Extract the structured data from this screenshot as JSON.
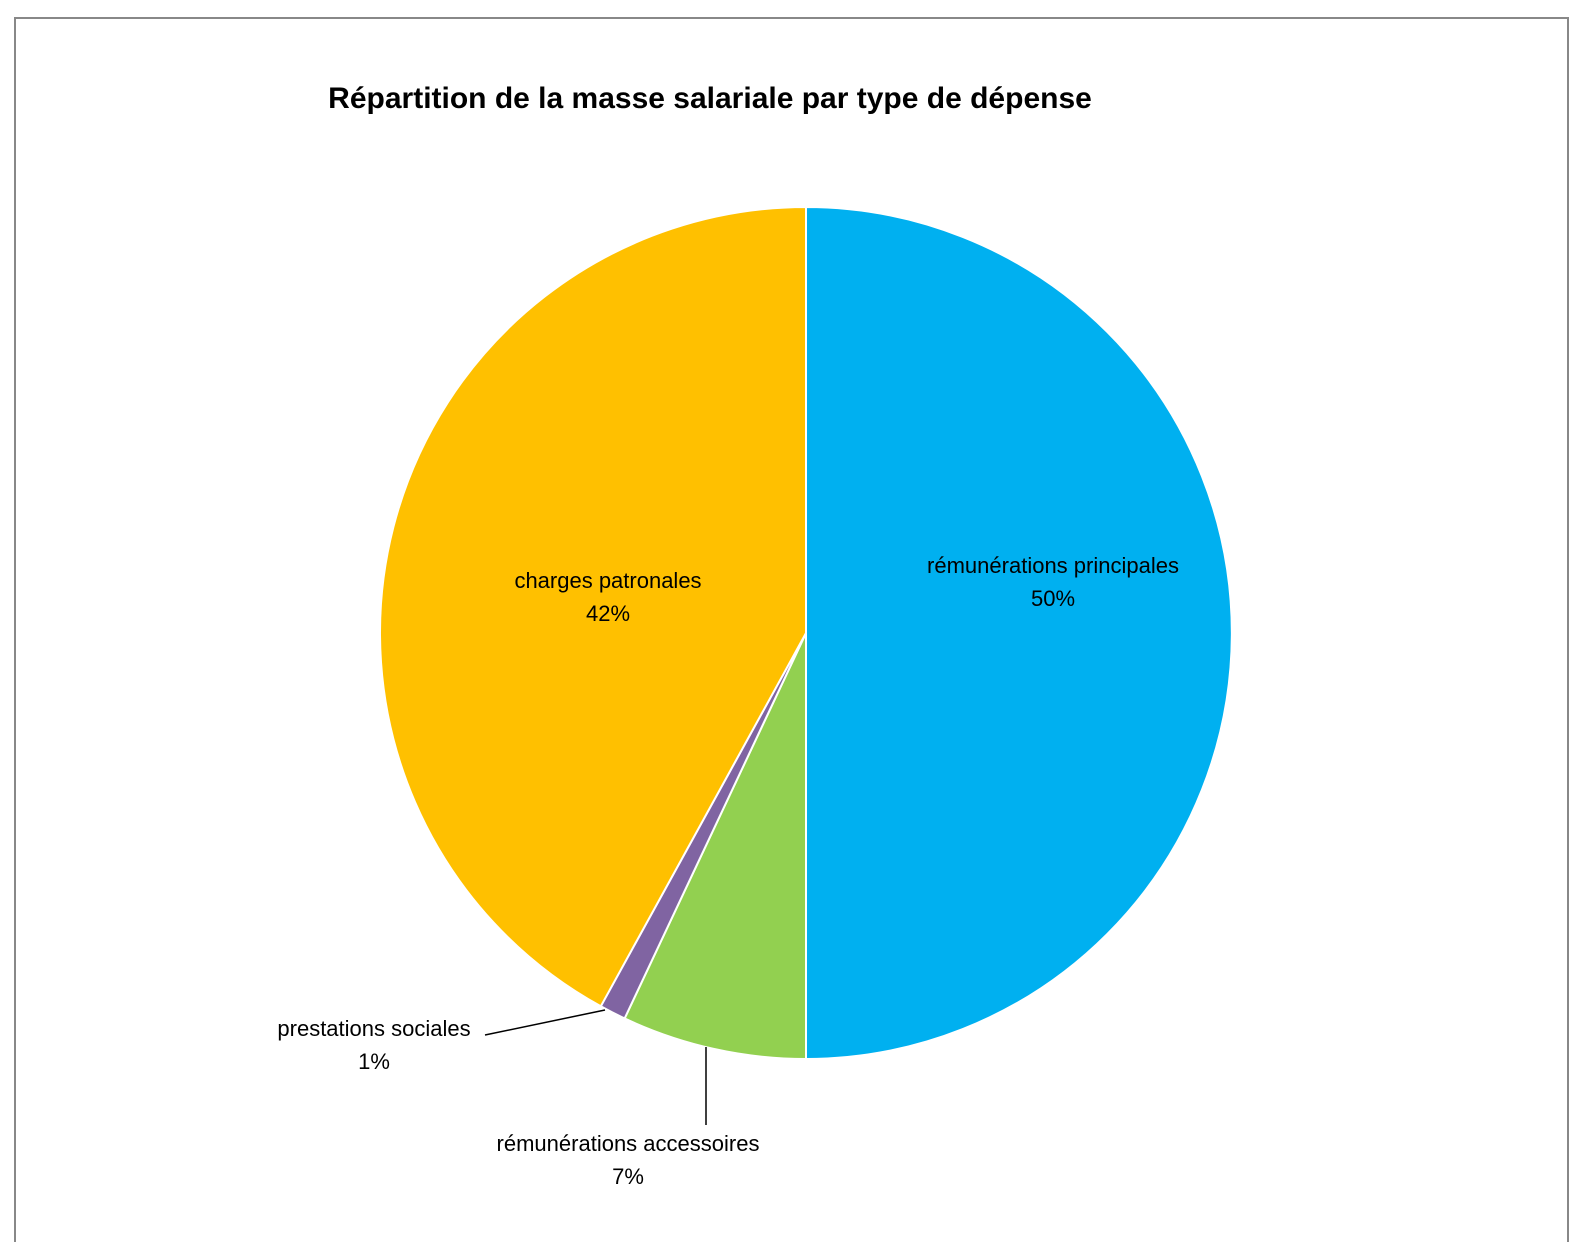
{
  "chart_data": {
    "type": "pie",
    "title": "Répartition de la masse salariale par type de dépense",
    "categories": [
      "rémunérations principales",
      "rémunérations accessoires",
      "prestations sociales",
      "charges patronales"
    ],
    "values": [
      50,
      7,
      1,
      42
    ],
    "value_labels": [
      "50%",
      "7%",
      "1%",
      "42%"
    ],
    "colors": [
      "#00b0f0",
      "#92d050",
      "#8064a2",
      "#ffc000"
    ]
  }
}
